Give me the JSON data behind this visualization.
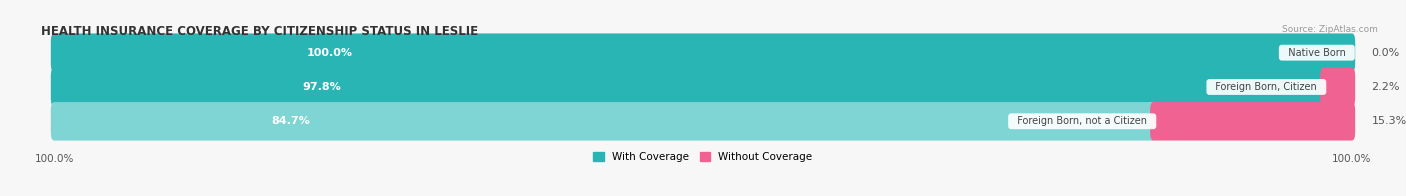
{
  "title": "HEALTH INSURANCE COVERAGE BY CITIZENSHIP STATUS IN LESLIE",
  "source": "Source: ZipAtlas.com",
  "categories": [
    "Native Born",
    "Foreign Born, Citizen",
    "Foreign Born, not a Citizen"
  ],
  "with_coverage": [
    100.0,
    97.8,
    84.7
  ],
  "without_coverage": [
    0.0,
    2.2,
    15.3
  ],
  "color_with": [
    "#2ab5b5",
    "#2ab5b5",
    "#7fd4d4"
  ],
  "color_without": "#f06292",
  "color_bg_bar": "#e4e4e4",
  "color_fig_bg": "#f7f7f7",
  "left_label": "100.0%",
  "right_label": "100.0%",
  "legend_with_color": "#2ab5b5",
  "legend_without_color": "#f06292"
}
